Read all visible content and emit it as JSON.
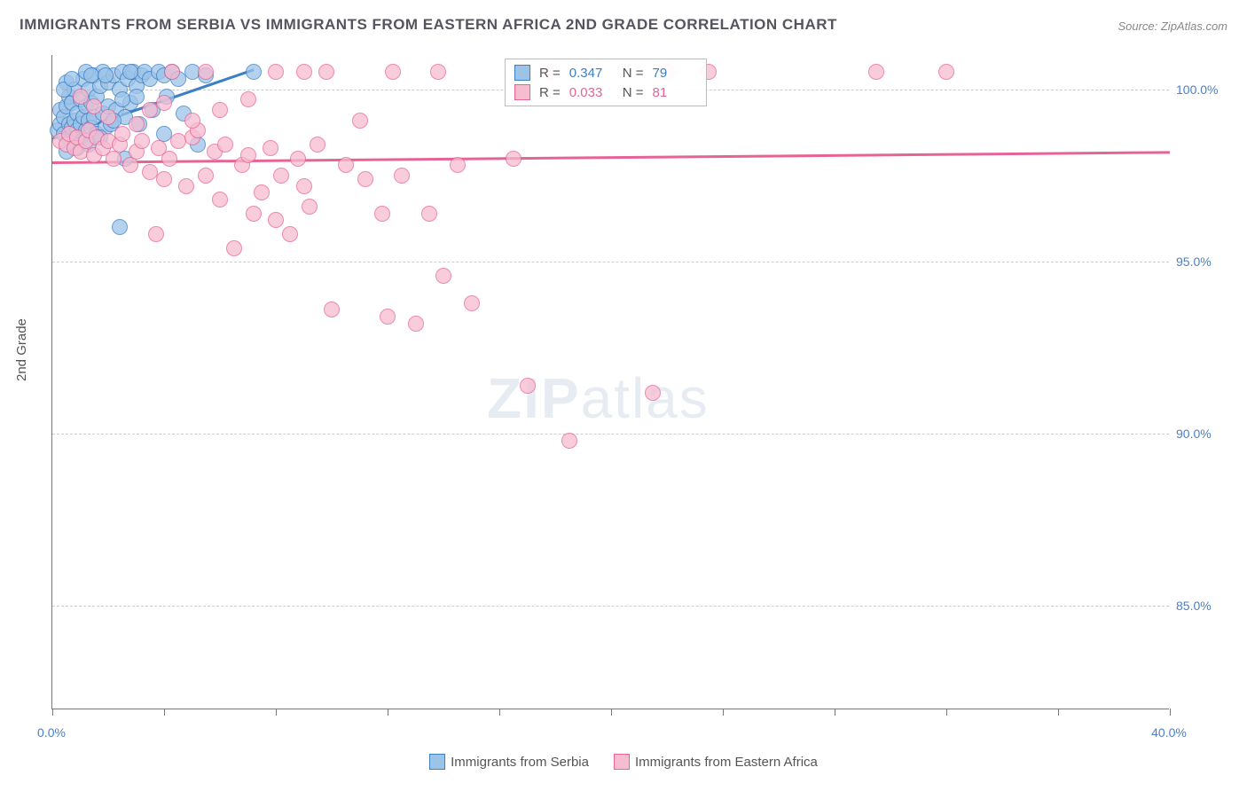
{
  "title": "IMMIGRANTS FROM SERBIA VS IMMIGRANTS FROM EASTERN AFRICA 2ND GRADE CORRELATION CHART",
  "source": "Source: ZipAtlas.com",
  "ylabel": "2nd Grade",
  "watermark": {
    "zip": "ZIP",
    "atlas": "atlas"
  },
  "chart": {
    "type": "scatter",
    "background_color": "#ffffff",
    "grid_color": "#cccccc",
    "axis_color": "#777777",
    "xlim": [
      0,
      40
    ],
    "ylim": [
      82,
      101
    ],
    "x_ticks": [
      0,
      4,
      8,
      12,
      16,
      20,
      24,
      28,
      32,
      36,
      40
    ],
    "x_tick_labels": {
      "0": "0.0%",
      "40": "40.0%"
    },
    "y_gridlines": [
      85,
      90,
      95,
      100
    ],
    "y_tick_labels": {
      "85": "85.0%",
      "90": "90.0%",
      "95": "95.0%",
      "100": "100.0%"
    },
    "tick_label_color": "#4a7fc8",
    "marker_radius": 9,
    "marker_stroke_width": 1.5,
    "marker_fill_opacity": 0.25,
    "series": [
      {
        "name": "Immigrants from Serbia",
        "color_stroke": "#3b7fc4",
        "color_fill": "#9cc3e8",
        "r": "0.347",
        "n": "79",
        "regression": {
          "x1": 0,
          "y1": 98.6,
          "x2": 7.2,
          "y2": 100.6
        },
        "points": [
          [
            0.2,
            98.8
          ],
          [
            0.3,
            99.0
          ],
          [
            0.3,
            99.4
          ],
          [
            0.4,
            98.7
          ],
          [
            0.4,
            99.2
          ],
          [
            0.5,
            99.5
          ],
          [
            0.5,
            100.2
          ],
          [
            0.6,
            98.6
          ],
          [
            0.6,
            99.0
          ],
          [
            0.6,
            99.8
          ],
          [
            0.7,
            98.9
          ],
          [
            0.7,
            99.6
          ],
          [
            0.8,
            98.5
          ],
          [
            0.8,
            99.1
          ],
          [
            0.8,
            100.0
          ],
          [
            0.9,
            98.8
          ],
          [
            0.9,
            99.3
          ],
          [
            1.0,
            98.6
          ],
          [
            1.0,
            99.0
          ],
          [
            1.0,
            99.7
          ],
          [
            1.1,
            100.3
          ],
          [
            1.1,
            99.2
          ],
          [
            1.2,
            98.8
          ],
          [
            1.2,
            99.5
          ],
          [
            1.3,
            100.0
          ],
          [
            1.3,
            99.1
          ],
          [
            1.4,
            98.9
          ],
          [
            1.4,
            99.6
          ],
          [
            1.5,
            100.4
          ],
          [
            1.5,
            99.2
          ],
          [
            1.6,
            98.7
          ],
          [
            1.6,
            99.8
          ],
          [
            1.7,
            100.1
          ],
          [
            1.8,
            99.3
          ],
          [
            1.8,
            100.5
          ],
          [
            1.9,
            98.9
          ],
          [
            2.0,
            99.5
          ],
          [
            2.0,
            100.2
          ],
          [
            2.1,
            99.0
          ],
          [
            2.2,
            100.4
          ],
          [
            2.3,
            99.4
          ],
          [
            2.4,
            100.0
          ],
          [
            2.5,
            100.5
          ],
          [
            2.6,
            99.2
          ],
          [
            2.7,
            100.3
          ],
          [
            2.8,
            99.6
          ],
          [
            2.9,
            100.5
          ],
          [
            3.0,
            100.1
          ],
          [
            3.1,
            99.0
          ],
          [
            3.2,
            100.4
          ],
          [
            3.3,
            100.5
          ],
          [
            3.5,
            100.3
          ],
          [
            3.6,
            99.4
          ],
          [
            3.8,
            100.5
          ],
          [
            4.0,
            100.4
          ],
          [
            4.1,
            99.8
          ],
          [
            4.3,
            100.5
          ],
          [
            4.5,
            100.3
          ],
          [
            4.7,
            99.3
          ],
          [
            5.0,
            100.5
          ],
          [
            5.2,
            98.4
          ],
          [
            5.5,
            100.4
          ],
          [
            0.5,
            98.2
          ],
          [
            0.9,
            98.3
          ],
          [
            1.3,
            98.4
          ],
          [
            2.6,
            98.0
          ],
          [
            3.0,
            99.8
          ],
          [
            4.0,
            98.7
          ],
          [
            2.4,
            96.0
          ],
          [
            7.2,
            100.5
          ],
          [
            1.2,
            100.5
          ],
          [
            1.4,
            100.4
          ],
          [
            1.7,
            98.6
          ],
          [
            2.2,
            99.1
          ],
          [
            2.8,
            100.5
          ],
          [
            0.4,
            100.0
          ],
          [
            0.7,
            100.3
          ],
          [
            1.9,
            100.4
          ],
          [
            2.5,
            99.7
          ]
        ]
      },
      {
        "name": "Immigrants from Eastern Africa",
        "color_stroke": "#e66395",
        "color_fill": "#f6bcd0",
        "r": "0.033",
        "n": "81",
        "regression": {
          "x1": 0,
          "y1": 97.9,
          "x2": 40,
          "y2": 98.2
        },
        "points": [
          [
            0.3,
            98.5
          ],
          [
            0.5,
            98.4
          ],
          [
            0.6,
            98.7
          ],
          [
            0.8,
            98.3
          ],
          [
            0.9,
            98.6
          ],
          [
            1.0,
            98.2
          ],
          [
            1.2,
            98.5
          ],
          [
            1.3,
            98.8
          ],
          [
            1.5,
            98.1
          ],
          [
            1.6,
            98.6
          ],
          [
            1.8,
            98.3
          ],
          [
            2.0,
            98.5
          ],
          [
            2.2,
            98.0
          ],
          [
            2.4,
            98.4
          ],
          [
            2.5,
            98.7
          ],
          [
            2.8,
            97.8
          ],
          [
            3.0,
            98.2
          ],
          [
            3.2,
            98.5
          ],
          [
            3.5,
            97.6
          ],
          [
            3.8,
            98.3
          ],
          [
            4.0,
            97.4
          ],
          [
            4.2,
            98.0
          ],
          [
            4.5,
            98.5
          ],
          [
            4.8,
            97.2
          ],
          [
            5.0,
            98.6
          ],
          [
            5.2,
            98.8
          ],
          [
            5.5,
            97.5
          ],
          [
            5.8,
            98.2
          ],
          [
            6.0,
            96.8
          ],
          [
            6.2,
            98.4
          ],
          [
            6.5,
            95.4
          ],
          [
            6.8,
            97.8
          ],
          [
            7.0,
            98.1
          ],
          [
            7.2,
            96.4
          ],
          [
            7.5,
            97.0
          ],
          [
            7.8,
            98.3
          ],
          [
            8.0,
            96.2
          ],
          [
            8.2,
            97.5
          ],
          [
            8.5,
            95.8
          ],
          [
            8.8,
            98.0
          ],
          [
            9.0,
            97.2
          ],
          [
            9.2,
            96.6
          ],
          [
            9.5,
            98.4
          ],
          [
            9.8,
            100.5
          ],
          [
            10.0,
            93.6
          ],
          [
            10.5,
            97.8
          ],
          [
            11.0,
            99.1
          ],
          [
            11.2,
            97.4
          ],
          [
            11.8,
            96.4
          ],
          [
            12.0,
            93.4
          ],
          [
            12.2,
            100.5
          ],
          [
            12.5,
            97.5
          ],
          [
            13.0,
            93.2
          ],
          [
            13.5,
            96.4
          ],
          [
            13.8,
            100.5
          ],
          [
            14.0,
            94.6
          ],
          [
            14.5,
            97.8
          ],
          [
            15.0,
            93.8
          ],
          [
            16.5,
            98.0
          ],
          [
            17.0,
            91.4
          ],
          [
            17.8,
            100.5
          ],
          [
            18.5,
            89.8
          ],
          [
            21.5,
            91.2
          ],
          [
            22.0,
            100.5
          ],
          [
            23.5,
            100.5
          ],
          [
            29.5,
            100.5
          ],
          [
            32.0,
            100.5
          ],
          [
            1.0,
            99.8
          ],
          [
            1.5,
            99.5
          ],
          [
            2.0,
            99.2
          ],
          [
            3.0,
            99.0
          ],
          [
            3.5,
            99.4
          ],
          [
            4.0,
            99.6
          ],
          [
            5.0,
            99.1
          ],
          [
            6.0,
            99.4
          ],
          [
            7.0,
            99.7
          ],
          [
            8.0,
            100.5
          ],
          [
            9.0,
            100.5
          ],
          [
            5.5,
            100.5
          ],
          [
            4.3,
            100.5
          ],
          [
            3.7,
            95.8
          ]
        ]
      }
    ]
  },
  "legend": {
    "series1_label": "Immigrants from Serbia",
    "series2_label": "Immigrants from Eastern Africa"
  }
}
